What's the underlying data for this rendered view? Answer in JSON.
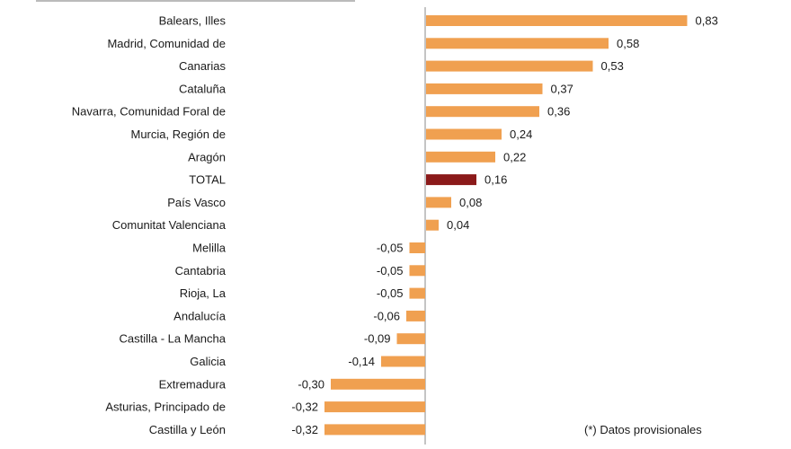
{
  "chart_data": {
    "type": "bar",
    "orientation": "horizontal",
    "categories": [
      "Balears, Illes",
      "Madrid, Comunidad de",
      "Canarias",
      "Cataluña",
      "Navarra, Comunidad Foral de",
      "Murcia, Región de",
      "Aragón",
      "TOTAL",
      "País Vasco",
      "Comunitat Valenciana",
      "Melilla",
      "Cantabria",
      "Rioja, La",
      "Andalucía",
      "Castilla - La Mancha",
      "Galicia",
      "Extremadura",
      "Asturias, Principado de",
      "Castilla y León"
    ],
    "values": [
      0.83,
      0.58,
      0.53,
      0.37,
      0.36,
      0.24,
      0.22,
      0.16,
      0.08,
      0.04,
      -0.05,
      -0.05,
      -0.05,
      -0.06,
      -0.09,
      -0.14,
      -0.3,
      -0.32,
      -0.32
    ],
    "value_labels": [
      "0,83",
      "0,58",
      "0,53",
      "0,37",
      "0,36",
      "0,24",
      "0,22",
      "0,16",
      "0,08",
      "0,04",
      "-0,05",
      "-0,05",
      "-0,05",
      "-0,06",
      "-0,09",
      "-0,14",
      "-0,30",
      "-0,32",
      "-0,32"
    ],
    "highlight_category": "TOTAL",
    "colors": {
      "bar": "#F0A050",
      "highlight": "#8B1A1A",
      "axis": "#888888"
    },
    "grid": false,
    "legend": "none"
  },
  "footnote": "(*) Datos provisionales"
}
